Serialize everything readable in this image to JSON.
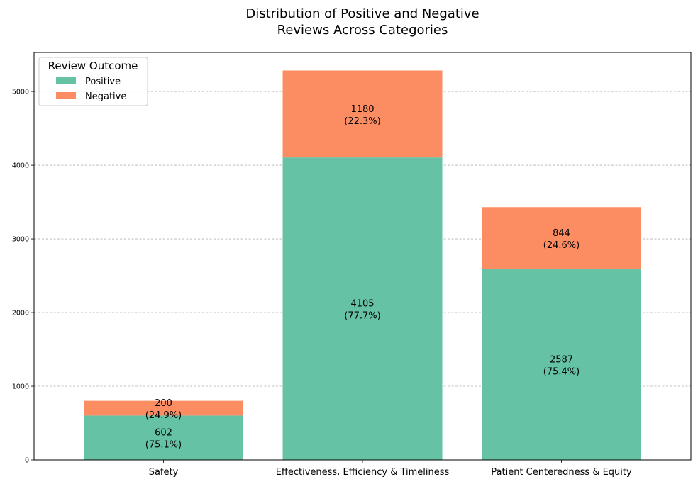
{
  "chart_data": {
    "type": "bar",
    "stacked": true,
    "title": [
      "Distribution of Positive and Negative",
      "Reviews Across Categories"
    ],
    "xlabel": "",
    "ylabel": "",
    "categories": [
      "Safety",
      "Effectiveness, Efficiency & Timeliness",
      "Patient Centeredness & Equity"
    ],
    "series": [
      {
        "name": "Positive",
        "color": "#66c2a5",
        "values": [
          602,
          4105,
          2587
        ],
        "labels": [
          "602\n(75.1%)",
          "4105\n(77.7%)",
          "2587\n(75.4%)"
        ]
      },
      {
        "name": "Negative",
        "color": "#fc8d62",
        "values": [
          200,
          1180,
          844
        ],
        "labels": [
          "200\n(24.9%)",
          "1180\n(22.3%)",
          "844\n(24.6%)"
        ]
      }
    ],
    "ylim": [
      0,
      5530
    ],
    "yticks": [
      0,
      1000,
      2000,
      3000,
      4000,
      5000
    ],
    "grid": "y-dashed",
    "legend": {
      "title": "Review Outcome",
      "position": "top-left"
    }
  }
}
